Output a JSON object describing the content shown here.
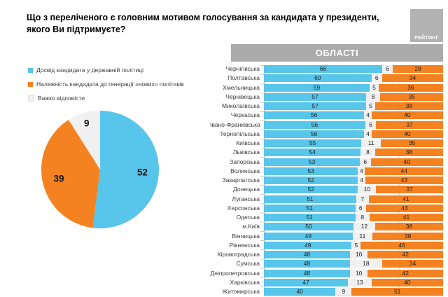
{
  "header": {
    "title_lines": [
      "Що з переліченого є головним мотивом голосування за кандидата у президенти,",
      "якого Ви підтримуєте?"
    ],
    "logo": "РЕЙТИНГ"
  },
  "colors": {
    "experience_blue": "#58C5EA",
    "new_politicians_orange": "#F58220",
    "hard_to_say_gray": "#F0F0F0",
    "panel_header_gray": "#ABABAB",
    "logo_gray": "#B2B2B2"
  },
  "legend": [
    {
      "key": "experience_blue",
      "label": "Досвід кандидата у державній політиці"
    },
    {
      "key": "new_politicians_orange",
      "label": "Належність кандидата до генерації «нових» політиків"
    },
    {
      "key": "hard_to_say_gray",
      "label": "Важко відповісти"
    }
  ],
  "chart_data": [
    {
      "type": "pie",
      "labels": [
        "Досвід кандидата у державній політиці",
        "Належність кандидата до генерації «нових» політиків",
        "Важко відповісти"
      ],
      "values": [
        52,
        39,
        9
      ],
      "colors": [
        "#58C5EA",
        "#F58220",
        "#F0F0F0"
      ],
      "start_angle": "top",
      "direction": "clockwise"
    },
    {
      "type": "bar",
      "subtype": "horizontal-stacked",
      "title": "ОБЛАСТІ",
      "xlim": [
        0,
        100
      ],
      "gridline_step": 25,
      "series": [
        {
          "name": "Досвід кандидата у державній політиці",
          "color": "#58C5EA"
        },
        {
          "name": "Важко відповісти",
          "color": "#F0F0F0"
        },
        {
          "name": "Належність кандидата до генерації «нових» політиків",
          "color": "#F58220"
        }
      ],
      "rows": [
        {
          "region": "Чернігівська",
          "values": [
            66,
            6,
            28
          ]
        },
        {
          "region": "Полтавська",
          "values": [
            60,
            6,
            34
          ]
        },
        {
          "region": "Хмельницька",
          "values": [
            59,
            5,
            36
          ]
        },
        {
          "region": "Чернівецька",
          "values": [
            57,
            8,
            35
          ]
        },
        {
          "region": "Миколаївська",
          "values": [
            57,
            5,
            38
          ]
        },
        {
          "region": "Черкаська",
          "values": [
            56,
            4,
            40
          ]
        },
        {
          "region": "Івано-Франківська",
          "values": [
            56,
            6,
            37
          ]
        },
        {
          "region": "Тернопільська",
          "values": [
            56,
            4,
            40
          ]
        },
        {
          "region": "Київська",
          "values": [
            55,
            11,
            35
          ]
        },
        {
          "region": "Львівська",
          "values": [
            54,
            8,
            38
          ]
        },
        {
          "region": "Запорізька",
          "values": [
            53,
            6,
            40
          ]
        },
        {
          "region": "Волинська",
          "values": [
            53,
            4,
            44
          ]
        },
        {
          "region": "Закарпатська",
          "values": [
            52,
            4,
            43
          ]
        },
        {
          "region": "Донецька",
          "values": [
            52,
            10,
            37
          ]
        },
        {
          "region": "Луганська",
          "values": [
            51,
            7,
            41
          ]
        },
        {
          "region": "Херсонська",
          "values": [
            51,
            6,
            43
          ]
        },
        {
          "region": "Одеська",
          "values": [
            51,
            8,
            41
          ]
        },
        {
          "region": "м.Київ",
          "values": [
            50,
            12,
            38
          ]
        },
        {
          "region": "Вінницька",
          "values": [
            49,
            11,
            39
          ]
        },
        {
          "region": "Рівненська",
          "values": [
            49,
            5,
            46
          ]
        },
        {
          "region": "Кіровоградська",
          "values": [
            48,
            10,
            42
          ]
        },
        {
          "region": "Сумська",
          "values": [
            48,
            18,
            34
          ]
        },
        {
          "region": "Дніпропетровська",
          "values": [
            48,
            10,
            42
          ]
        },
        {
          "region": "Харківська",
          "values": [
            47,
            13,
            40
          ]
        },
        {
          "region": "Житомирська",
          "values": [
            40,
            9,
            51
          ]
        }
      ]
    }
  ]
}
